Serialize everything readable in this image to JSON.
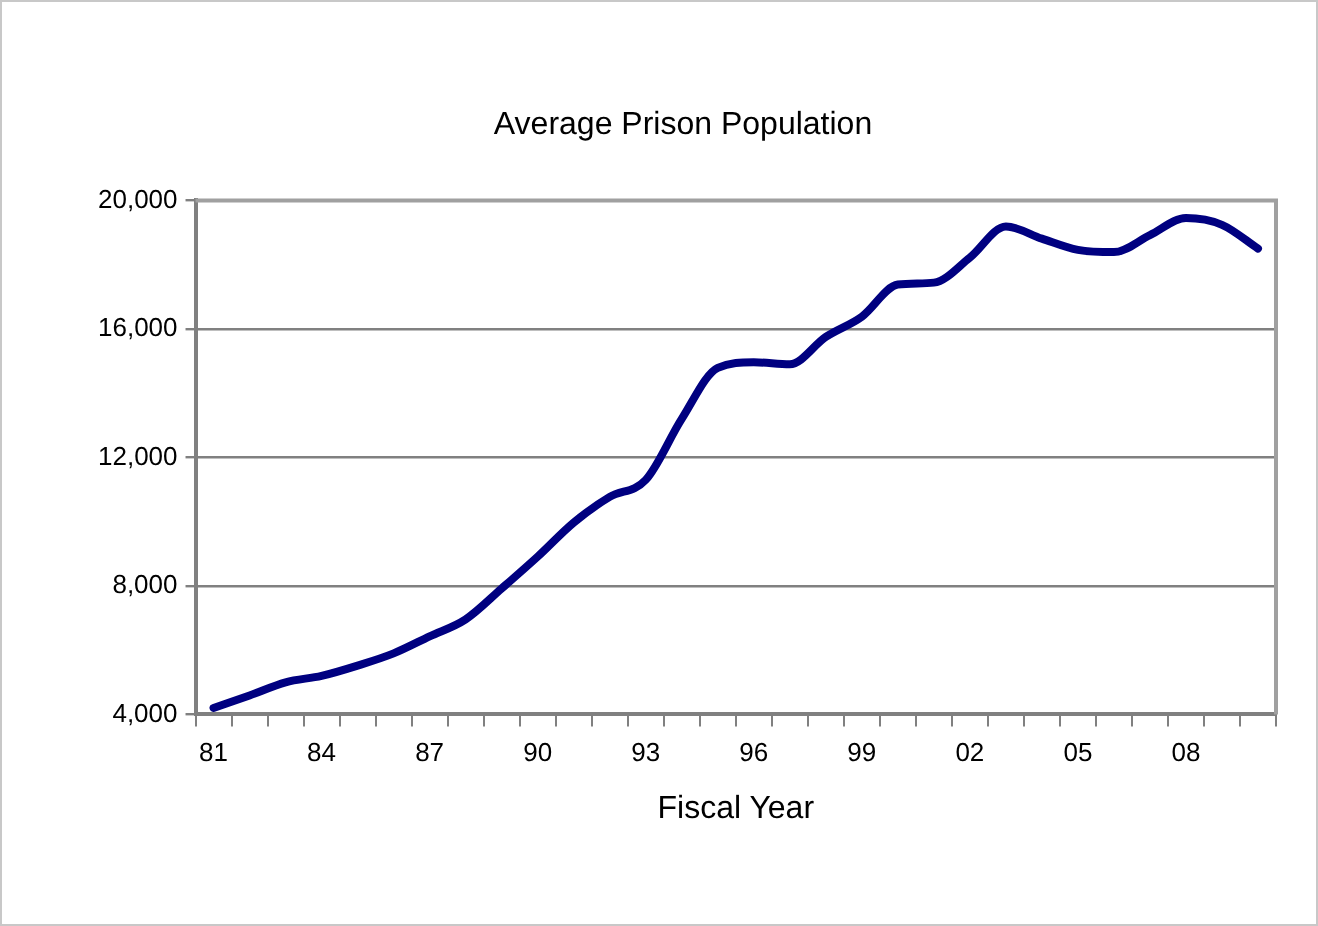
{
  "chart_data": {
    "type": "line",
    "title": "Average Prison Population",
    "xlabel": "Fiscal Year",
    "categories": [
      "81",
      null,
      null,
      "84",
      null,
      null,
      "87",
      null,
      null,
      "90",
      null,
      null,
      "93",
      null,
      null,
      "96",
      null,
      null,
      "99",
      null,
      null,
      "02",
      null,
      null,
      "05",
      null,
      null,
      "08",
      null,
      null
    ],
    "series": [
      {
        "color": "#000080",
        "values": [
          4200,
          4590,
          5000,
          5200,
          5520,
          5900,
          6430,
          6960,
          7920,
          8910,
          9970,
          10770,
          11300,
          13200,
          14790,
          14960,
          14900,
          15750,
          16380,
          17380,
          17440,
          18220,
          19190,
          18810,
          18460,
          18390,
          18920,
          19450,
          19240,
          18500
        ]
      }
    ],
    "ylim": [
      4000,
      20000
    ],
    "yticks": [
      {
        "value": 4000,
        "label": "4,000"
      },
      {
        "value": 8000,
        "label": "8,000"
      },
      {
        "value": 12000,
        "label": "12,000"
      },
      {
        "value": 16000,
        "label": "16,000"
      },
      {
        "value": 20000,
        "label": "20,000"
      }
    ],
    "grid": "y",
    "legend": false,
    "marker": "none",
    "line_style": "solid"
  }
}
